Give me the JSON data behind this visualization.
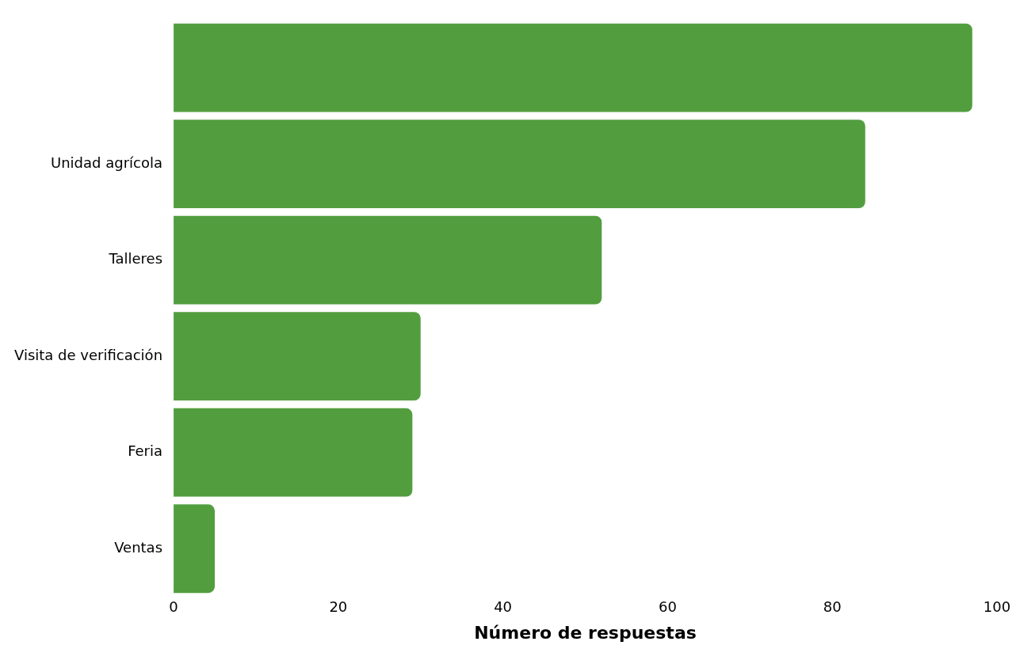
{
  "chart_data": {
    "type": "bar",
    "orientation": "horizontal",
    "xlabel": "Número de respuestas",
    "categories": [
      null,
      "Unidad agrícola",
      "Talleres",
      "Visita de verificación",
      "Feria",
      "Ventas"
    ],
    "values": [
      97,
      84,
      52,
      30,
      29,
      5
    ],
    "color": "#529e3f",
    "xlim": [
      0,
      100
    ],
    "xticks": [
      0,
      20,
      40,
      60,
      80,
      100
    ],
    "grid": false,
    "legend": false
  }
}
